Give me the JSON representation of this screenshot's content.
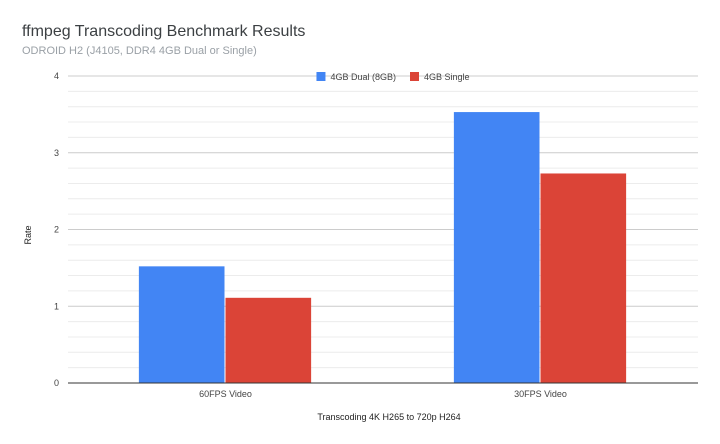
{
  "chart_data": {
    "type": "bar",
    "title": "ffmpeg Transcoding Benchmark Results",
    "subtitle": "ODROID H2 (J4105, DDR4 4GB Dual or Single)",
    "xlabel": "Transcoding 4K H265 to 720p H264",
    "ylabel": "Rate",
    "categories": [
      "60FPS Video",
      "30FPS Video"
    ],
    "series": [
      {
        "name": "4GB Dual (8GB)",
        "color": "#4285f4",
        "values": [
          1.52,
          3.53
        ]
      },
      {
        "name": "4GB Single",
        "color": "#db4437",
        "values": [
          1.11,
          2.73
        ]
      }
    ],
    "ylim": [
      0,
      4
    ],
    "yticks": [
      "0",
      "1",
      "2",
      "3",
      "4"
    ],
    "grid": true,
    "legend": "top-center"
  }
}
